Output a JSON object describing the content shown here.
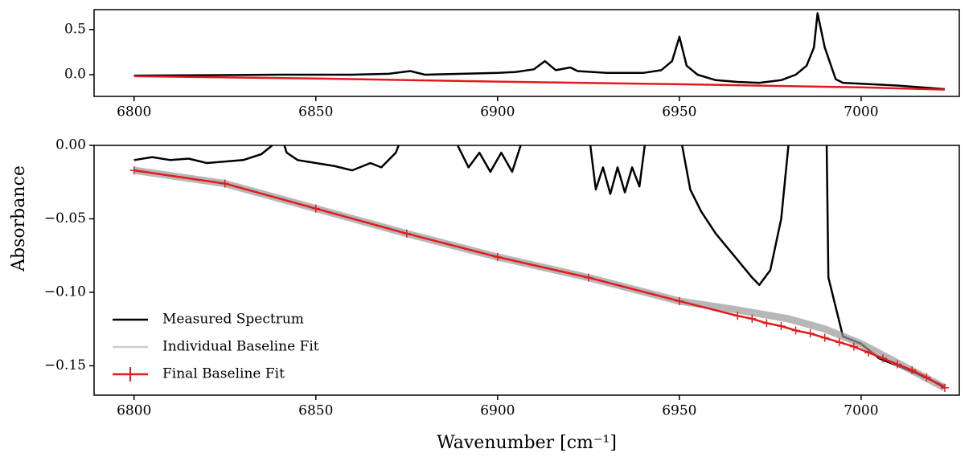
{
  "chart_data": [
    {
      "type": "line",
      "xlim": [
        6789,
        7027
      ],
      "xticks": [
        6800,
        6850,
        6900,
        6950,
        7000
      ],
      "ylim": [
        -0.24,
        0.72
      ],
      "yticks": [
        {
          "value": 0,
          "label": "0.0"
        },
        {
          "value": 0.5,
          "label": "0.5"
        }
      ],
      "series": [
        {
          "color": "#000000",
          "x": [
            6800,
            6820,
            6840,
            6860,
            6870,
            6876,
            6880,
            6890,
            6900,
            6905,
            6910,
            6913,
            6916,
            6920,
            6922,
            6930,
            6940,
            6945,
            6948,
            6950,
            6952,
            6955,
            6960,
            6966,
            6972,
            6978,
            6982,
            6985,
            6987,
            6988,
            6990,
            6993,
            6995,
            7010,
            7023
          ],
          "values": [
            -0.01,
            -0.005,
            0.0,
            0.0,
            0.01,
            0.04,
            0.0,
            0.01,
            0.02,
            0.03,
            0.06,
            0.15,
            0.05,
            0.08,
            0.04,
            0.02,
            0.02,
            0.05,
            0.15,
            0.42,
            0.1,
            0.0,
            -0.06,
            -0.08,
            -0.09,
            -0.06,
            0.0,
            0.1,
            0.3,
            0.68,
            0.3,
            -0.05,
            -0.09,
            -0.12,
            -0.16
          ]
        },
        {
          "color": "#e31a1c",
          "x": [
            6800,
            6850,
            6900,
            6950,
            7000,
            7023
          ],
          "values": [
            -0.017,
            -0.043,
            -0.076,
            -0.106,
            -0.14,
            -0.165
          ]
        }
      ]
    },
    {
      "type": "line",
      "xlim": [
        6789,
        7027
      ],
      "xticks": [
        6800,
        6850,
        6900,
        6950,
        7000
      ],
      "ylim": [
        -0.17,
        0
      ],
      "yticks": [
        {
          "value": -0.15,
          "label": "−0.15"
        },
        {
          "value": -0.1,
          "label": "−0.10"
        },
        {
          "value": -0.05,
          "label": "−0.05"
        },
        {
          "value": 0,
          "label": "0.00"
        }
      ],
      "x_label": "Wavenumber [cm⁻¹]",
      "y_label": "Absorbance",
      "legend": "lower left",
      "series": [
        {
          "name": "Measured Spectrum",
          "color": "#000000",
          "x": [
            6800,
            6805,
            6810,
            6815,
            6820,
            6825,
            6830,
            6835,
            6838,
            6840,
            6842,
            6845,
            6850,
            6855,
            6860,
            6865,
            6868,
            6872,
            6876,
            6880,
            6885,
            6888,
            6892,
            6895,
            6898,
            6901,
            6904,
            6907,
            6910,
            6913,
            6925,
            6927,
            6929,
            6931,
            6933,
            6935,
            6937,
            6939,
            6941,
            6950,
            6953,
            6956,
            6960,
            6965,
            6970,
            6972,
            6975,
            6978,
            6980,
            6982,
            6990,
            6991,
            6995,
            7000,
            7005,
            7010,
            7015,
            7023
          ],
          "values": [
            -0.01,
            -0.008,
            -0.01,
            -0.009,
            -0.012,
            -0.011,
            -0.01,
            -0.006,
            0.0,
            0.01,
            -0.005,
            -0.01,
            -0.012,
            -0.014,
            -0.017,
            -0.012,
            -0.015,
            -0.005,
            0.02,
            0.02,
            0.02,
            0.005,
            -0.015,
            -0.005,
            -0.018,
            -0.005,
            -0.018,
            0.005,
            0.03,
            0.05,
            0.01,
            -0.03,
            -0.015,
            -0.033,
            -0.015,
            -0.032,
            -0.015,
            -0.028,
            0.01,
            0.01,
            -0.03,
            -0.045,
            -0.06,
            -0.075,
            -0.09,
            -0.095,
            -0.085,
            -0.05,
            0.0,
            0.05,
            0.1,
            -0.09,
            -0.13,
            -0.135,
            -0.145,
            -0.15,
            -0.155,
            -0.164
          ]
        },
        {
          "name": "Individual Baseline Fit",
          "color": "#999999",
          "x": [
            6800,
            6825,
            6850,
            6875,
            6900,
            6925,
            6950,
            6966,
            6980,
            6990,
            7000,
            7010,
            7023
          ],
          "values": [
            -0.017,
            -0.026,
            -0.043,
            -0.06,
            -0.076,
            -0.09,
            -0.106,
            -0.112,
            -0.118,
            -0.125,
            -0.135,
            -0.148,
            -0.165
          ]
        },
        {
          "name": "Final Baseline Fit",
          "color": "#e31a1c",
          "marker": "+",
          "x": [
            6800,
            6825,
            6850,
            6875,
            6900,
            6925,
            6950,
            6966,
            6970,
            6974,
            6978,
            6982,
            6986,
            6990,
            6994,
            6998,
            7002,
            7006,
            7010,
            7014,
            7018,
            7023
          ],
          "values": [
            -0.017,
            -0.026,
            -0.043,
            -0.06,
            -0.076,
            -0.09,
            -0.106,
            -0.116,
            -0.118,
            -0.121,
            -0.123,
            -0.126,
            -0.128,
            -0.131,
            -0.134,
            -0.137,
            -0.141,
            -0.145,
            -0.149,
            -0.153,
            -0.158,
            -0.165
          ]
        }
      ]
    }
  ]
}
